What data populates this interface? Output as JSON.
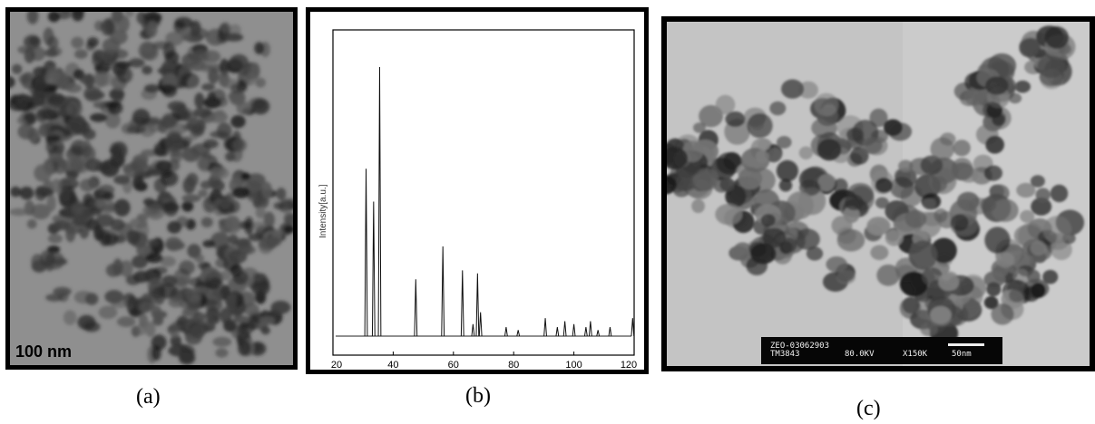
{
  "panels": {
    "a": {
      "caption": "(a)",
      "scale_bar_label": "100 nm"
    },
    "b": {
      "caption": "(b)"
    },
    "c": {
      "caption": "(c)",
      "info_line1": "ZEO-03062903",
      "info_line2": "TM3843",
      "voltage": "80.0KV",
      "magnification": "X150K",
      "scale_label": "50nm"
    }
  },
  "chart_data": {
    "type": "line",
    "title": "",
    "xlabel": "",
    "ylabel": "Intensity[a.u.]",
    "xlim": [
      20,
      120
    ],
    "ylim": [
      0,
      100
    ],
    "x_ticks": [
      20,
      40,
      60,
      80,
      100,
      120
    ],
    "grid": false,
    "series": [
      {
        "peaks": [
          {
            "x": 31.0,
            "y": 56
          },
          {
            "x": 33.5,
            "y": 45
          },
          {
            "x": 35.5,
            "y": 90
          },
          {
            "x": 47.5,
            "y": 19
          },
          {
            "x": 56.5,
            "y": 30
          },
          {
            "x": 63.0,
            "y": 22
          },
          {
            "x": 66.5,
            "y": 4
          },
          {
            "x": 68.0,
            "y": 21
          },
          {
            "x": 69.0,
            "y": 8
          },
          {
            "x": 77.5,
            "y": 3
          },
          {
            "x": 81.5,
            "y": 2
          },
          {
            "x": 90.5,
            "y": 6
          },
          {
            "x": 94.5,
            "y": 3
          },
          {
            "x": 97.0,
            "y": 5
          },
          {
            "x": 100.0,
            "y": 4
          },
          {
            "x": 104.0,
            "y": 3
          },
          {
            "x": 105.5,
            "y": 5
          },
          {
            "x": 108.0,
            "y": 2
          },
          {
            "x": 112.0,
            "y": 3
          },
          {
            "x": 119.5,
            "y": 6
          }
        ]
      }
    ]
  }
}
